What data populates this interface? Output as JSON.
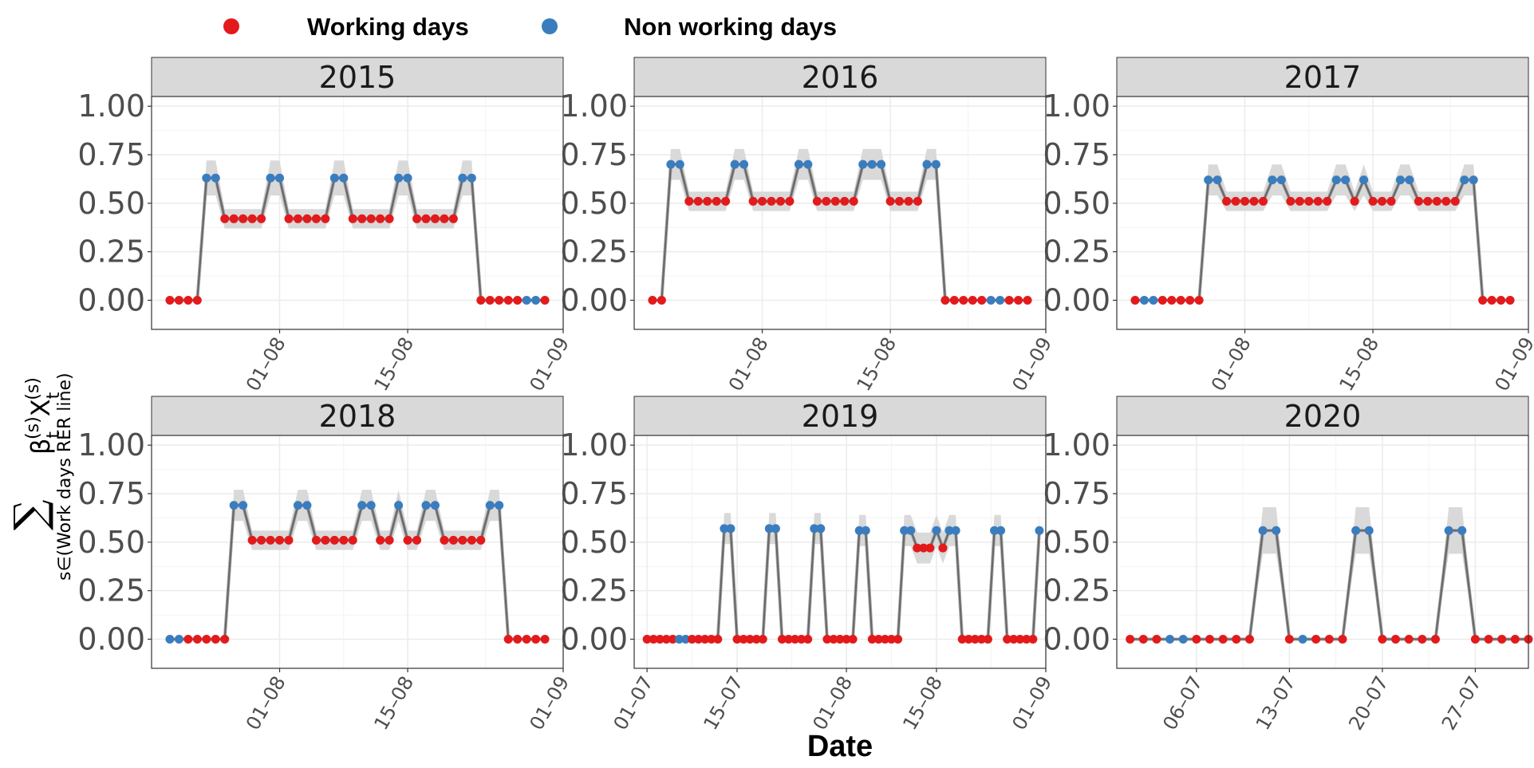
{
  "colors": {
    "working": "#e31a1c",
    "non_working": "#3a7dbf",
    "band": "#d9d9d9",
    "fit_line": "#8c8c8c",
    "obs_line": "#000000",
    "strip_bg": "#d9d9d9",
    "grid": "#ebebeb"
  },
  "legend": {
    "items": [
      {
        "label": "Working days",
        "color_key": "working"
      },
      {
        "label": "Non working days",
        "color_key": "non_working"
      }
    ]
  },
  "axis": {
    "xlabel": "Date",
    "ylabel": {
      "sum_symbol": "∑",
      "main": "βt(s)Xt(s)",
      "beta": "β",
      "x_sym": "X",
      "sub_t": "t",
      "sup_s": "(s)",
      "subscript": "s∈(Work days RER line)"
    },
    "yticks": [
      "0.00",
      "0.25",
      "0.50",
      "0.75",
      "1.00"
    ]
  },
  "chart_data": [
    {
      "type": "scatter",
      "panel": "2015",
      "x_start": "2015-07-20",
      "xlim": [
        "2015-07-18",
        "2015-09-01"
      ],
      "ylim": [
        -0.15,
        1.05
      ],
      "xticks": [
        {
          "date": "2015-08-01",
          "label": "01–08"
        },
        {
          "date": "2015-08-15",
          "label": "15–08"
        },
        {
          "date": "2015-09-01",
          "label": "01–09"
        }
      ],
      "values": [
        0,
        0,
        0,
        0,
        0.63,
        0.63,
        0.42,
        0.42,
        0.42,
        0.42,
        0.42,
        0.63,
        0.63,
        0.42,
        0.42,
        0.42,
        0.42,
        0.42,
        0.63,
        0.63,
        0.42,
        0.42,
        0.42,
        0.42,
        0.42,
        0.63,
        0.63,
        0.42,
        0.42,
        0.42,
        0.42,
        0.42,
        0.63,
        0.63,
        0,
        0,
        0,
        0,
        0,
        0,
        0,
        0
      ],
      "day_type": [
        "W",
        "W",
        "W",
        "W",
        "N",
        "N",
        "W",
        "W",
        "W",
        "W",
        "W",
        "N",
        "N",
        "W",
        "W",
        "W",
        "W",
        "W",
        "N",
        "N",
        "W",
        "W",
        "W",
        "W",
        "W",
        "N",
        "N",
        "W",
        "W",
        "W",
        "W",
        "W",
        "N",
        "N",
        "W",
        "W",
        "W",
        "W",
        "W",
        "N",
        "N",
        "W"
      ],
      "band": [
        0,
        0,
        0,
        0,
        0.09,
        0.09,
        0.05,
        0.05,
        0.05,
        0.05,
        0.05,
        0.09,
        0.09,
        0.05,
        0.05,
        0.05,
        0.05,
        0.05,
        0.09,
        0.09,
        0.05,
        0.05,
        0.05,
        0.05,
        0.05,
        0.09,
        0.09,
        0.05,
        0.05,
        0.05,
        0.05,
        0.05,
        0.09,
        0.09,
        0,
        0,
        0,
        0,
        0,
        0,
        0,
        0
      ]
    },
    {
      "type": "scatter",
      "panel": "2016",
      "x_start": "2016-07-20",
      "xlim": [
        "2016-07-18",
        "2016-09-01"
      ],
      "ylim": [
        -0.15,
        1.05
      ],
      "xticks": [
        {
          "date": "2016-08-01",
          "label": "01–08"
        },
        {
          "date": "2016-08-15",
          "label": "15–08"
        },
        {
          "date": "2016-09-01",
          "label": "01–09"
        }
      ],
      "values": [
        0,
        0,
        0.7,
        0.7,
        0.51,
        0.51,
        0.51,
        0.51,
        0.51,
        0.7,
        0.7,
        0.51,
        0.51,
        0.51,
        0.51,
        0.51,
        0.7,
        0.7,
        0.51,
        0.51,
        0.51,
        0.51,
        0.51,
        0.7,
        0.7,
        0.7,
        0.51,
        0.51,
        0.51,
        0.51,
        0.7,
        0.7,
        0,
        0,
        0,
        0,
        0,
        0,
        0,
        0,
        0,
        0
      ],
      "day_type": [
        "W",
        "W",
        "N",
        "N",
        "W",
        "W",
        "W",
        "W",
        "W",
        "N",
        "N",
        "W",
        "W",
        "W",
        "W",
        "W",
        "N",
        "N",
        "W",
        "W",
        "W",
        "W",
        "W",
        "N",
        "N",
        "N",
        "W",
        "W",
        "W",
        "W",
        "N",
        "N",
        "W",
        "W",
        "W",
        "W",
        "W",
        "N",
        "N",
        "W",
        "W",
        "W"
      ],
      "band": [
        0,
        0,
        0.08,
        0.08,
        0.05,
        0.05,
        0.05,
        0.05,
        0.05,
        0.08,
        0.08,
        0.05,
        0.05,
        0.05,
        0.05,
        0.05,
        0.08,
        0.08,
        0.05,
        0.05,
        0.05,
        0.05,
        0.05,
        0.08,
        0.08,
        0.08,
        0.05,
        0.05,
        0.05,
        0.05,
        0.08,
        0.08,
        0,
        0,
        0,
        0,
        0,
        0,
        0,
        0,
        0,
        0
      ]
    },
    {
      "type": "scatter",
      "panel": "2017",
      "x_start": "2017-07-20",
      "xlim": [
        "2017-07-18",
        "2017-09-01"
      ],
      "ylim": [
        -0.15,
        1.05
      ],
      "xticks": [
        {
          "date": "2017-08-01",
          "label": "01–08"
        },
        {
          "date": "2017-08-15",
          "label": "15–08"
        },
        {
          "date": "2017-09-01",
          "label": "01–09"
        }
      ],
      "values": [
        0,
        0,
        0,
        0,
        0,
        0,
        0,
        0,
        0.62,
        0.62,
        0.51,
        0.51,
        0.51,
        0.51,
        0.51,
        0.62,
        0.62,
        0.51,
        0.51,
        0.51,
        0.51,
        0.51,
        0.62,
        0.62,
        0.51,
        0.62,
        0.51,
        0.51,
        0.51,
        0.62,
        0.62,
        0.51,
        0.51,
        0.51,
        0.51,
        0.51,
        0.62,
        0.62,
        0,
        0,
        0,
        0
      ],
      "day_type": [
        "W",
        "N",
        "N",
        "W",
        "W",
        "W",
        "W",
        "W",
        "N",
        "N",
        "W",
        "W",
        "W",
        "W",
        "W",
        "N",
        "N",
        "W",
        "W",
        "W",
        "W",
        "W",
        "N",
        "N",
        "W",
        "N",
        "W",
        "W",
        "W",
        "N",
        "N",
        "W",
        "W",
        "W",
        "W",
        "W",
        "N",
        "N",
        "W",
        "W",
        "W",
        "W"
      ],
      "band": [
        0,
        0,
        0,
        0,
        0,
        0,
        0,
        0,
        0.08,
        0.08,
        0.05,
        0.05,
        0.05,
        0.05,
        0.05,
        0.08,
        0.08,
        0.05,
        0.05,
        0.05,
        0.05,
        0.05,
        0.08,
        0.08,
        0.05,
        0.08,
        0.05,
        0.05,
        0.05,
        0.08,
        0.08,
        0.05,
        0.05,
        0.05,
        0.05,
        0.05,
        0.08,
        0.08,
        0,
        0,
        0,
        0
      ]
    },
    {
      "type": "scatter",
      "panel": "2018",
      "x_start": "2018-07-20",
      "xlim": [
        "2018-07-18",
        "2018-09-01"
      ],
      "ylim": [
        -0.15,
        1.05
      ],
      "xticks": [
        {
          "date": "2018-08-01",
          "label": "01–08"
        },
        {
          "date": "2018-08-15",
          "label": "15–08"
        },
        {
          "date": "2018-09-01",
          "label": "01–09"
        }
      ],
      "values": [
        0,
        0,
        0,
        0,
        0,
        0,
        0,
        0.69,
        0.69,
        0.51,
        0.51,
        0.51,
        0.51,
        0.51,
        0.69,
        0.69,
        0.51,
        0.51,
        0.51,
        0.51,
        0.51,
        0.69,
        0.69,
        0.51,
        0.51,
        0.69,
        0.51,
        0.51,
        0.69,
        0.69,
        0.51,
        0.51,
        0.51,
        0.51,
        0.51,
        0.69,
        0.69,
        0,
        0,
        0,
        0,
        0
      ],
      "day_type": [
        "N",
        "N",
        "W",
        "W",
        "W",
        "W",
        "W",
        "N",
        "N",
        "W",
        "W",
        "W",
        "W",
        "W",
        "N",
        "N",
        "W",
        "W",
        "W",
        "W",
        "W",
        "N",
        "N",
        "W",
        "W",
        "N",
        "W",
        "W",
        "N",
        "N",
        "W",
        "W",
        "W",
        "W",
        "W",
        "N",
        "N",
        "W",
        "W",
        "W",
        "W",
        "W"
      ],
      "band": [
        0,
        0,
        0,
        0,
        0,
        0,
        0,
        0.08,
        0.08,
        0.05,
        0.05,
        0.05,
        0.05,
        0.05,
        0.08,
        0.08,
        0.05,
        0.05,
        0.05,
        0.05,
        0.05,
        0.08,
        0.08,
        0.05,
        0.05,
        0.08,
        0.05,
        0.05,
        0.08,
        0.08,
        0.05,
        0.05,
        0.05,
        0.05,
        0.05,
        0.08,
        0.08,
        0,
        0,
        0,
        0,
        0
      ]
    },
    {
      "type": "scatter",
      "panel": "2019",
      "x_start": "2019-07-01",
      "xlim": [
        "2019-06-29",
        "2019-09-01"
      ],
      "ylim": [
        -0.15,
        1.05
      ],
      "xticks": [
        {
          "date": "2019-07-01",
          "label": "01–07"
        },
        {
          "date": "2019-07-15",
          "label": "15–07"
        },
        {
          "date": "2019-08-01",
          "label": "01–08"
        },
        {
          "date": "2019-08-15",
          "label": "15–08"
        },
        {
          "date": "2019-09-01",
          "label": "01–09"
        }
      ],
      "values": [
        0,
        0,
        0,
        0,
        0,
        0,
        0,
        0,
        0,
        0,
        0,
        0,
        0.57,
        0.57,
        0,
        0,
        0,
        0,
        0,
        0.57,
        0.57,
        0,
        0,
        0,
        0,
        0,
        0.57,
        0.57,
        0,
        0,
        0,
        0,
        0,
        0.56,
        0.56,
        0,
        0,
        0,
        0,
        0,
        0.56,
        0.56,
        0.47,
        0.47,
        0.47,
        0.56,
        0.47,
        0.56,
        0.56,
        0,
        0,
        0,
        0,
        0,
        0.56,
        0.56,
        0,
        0,
        0,
        0,
        0,
        0.56
      ],
      "day_type": [
        "W",
        "W",
        "W",
        "W",
        "W",
        "N",
        "N",
        "W",
        "W",
        "W",
        "W",
        "W",
        "N",
        "N",
        "W",
        "W",
        "W",
        "W",
        "W",
        "N",
        "N",
        "W",
        "W",
        "W",
        "W",
        "W",
        "N",
        "N",
        "W",
        "W",
        "W",
        "W",
        "W",
        "N",
        "N",
        "W",
        "W",
        "W",
        "W",
        "W",
        "N",
        "N",
        "W",
        "W",
        "W",
        "N",
        "W",
        "N",
        "N",
        "W",
        "W",
        "W",
        "W",
        "W",
        "N",
        "N",
        "W",
        "W",
        "W",
        "W",
        "W",
        "N"
      ],
      "band": [
        0,
        0,
        0,
        0,
        0,
        0,
        0,
        0,
        0,
        0,
        0,
        0,
        0.08,
        0.08,
        0,
        0,
        0,
        0,
        0,
        0.08,
        0.08,
        0,
        0,
        0,
        0,
        0,
        0.08,
        0.08,
        0,
        0,
        0,
        0,
        0,
        0.08,
        0.08,
        0,
        0,
        0,
        0,
        0,
        0.08,
        0.08,
        0.08,
        0.08,
        0.08,
        0.08,
        0.08,
        0.08,
        0.08,
        0,
        0,
        0,
        0,
        0,
        0.08,
        0.08,
        0,
        0,
        0,
        0,
        0,
        0.08
      ]
    },
    {
      "type": "scatter",
      "panel": "2020",
      "x_start": "2020-07-01",
      "xlim": [
        "2020-06-30",
        "2020-07-31"
      ],
      "ylim": [
        -0.15,
        1.05
      ],
      "xticks": [
        {
          "date": "2020-07-06",
          "label": "06–07"
        },
        {
          "date": "2020-07-13",
          "label": "13–07"
        },
        {
          "date": "2020-07-20",
          "label": "20–07"
        },
        {
          "date": "2020-07-27",
          "label": "27–07"
        }
      ],
      "values": [
        0,
        0,
        0,
        0,
        0,
        0,
        0,
        0,
        0,
        0,
        0.56,
        0.56,
        0,
        0,
        0,
        0,
        0,
        0.56,
        0.56,
        0,
        0,
        0,
        0,
        0,
        0.56,
        0.56,
        0,
        0,
        0,
        0,
        0
      ],
      "day_type": [
        "W",
        "W",
        "W",
        "N",
        "N",
        "W",
        "W",
        "W",
        "W",
        "W",
        "N",
        "N",
        "W",
        "N",
        "W",
        "W",
        "W",
        "N",
        "N",
        "W",
        "W",
        "W",
        "W",
        "W",
        "N",
        "N",
        "W",
        "W",
        "W",
        "W",
        "W"
      ],
      "band": [
        0,
        0,
        0,
        0,
        0,
        0,
        0,
        0,
        0,
        0,
        0.12,
        0.12,
        0,
        0,
        0,
        0,
        0,
        0.12,
        0.12,
        0,
        0,
        0,
        0,
        0,
        0.12,
        0.12,
        0,
        0,
        0,
        0,
        0
      ]
    }
  ]
}
